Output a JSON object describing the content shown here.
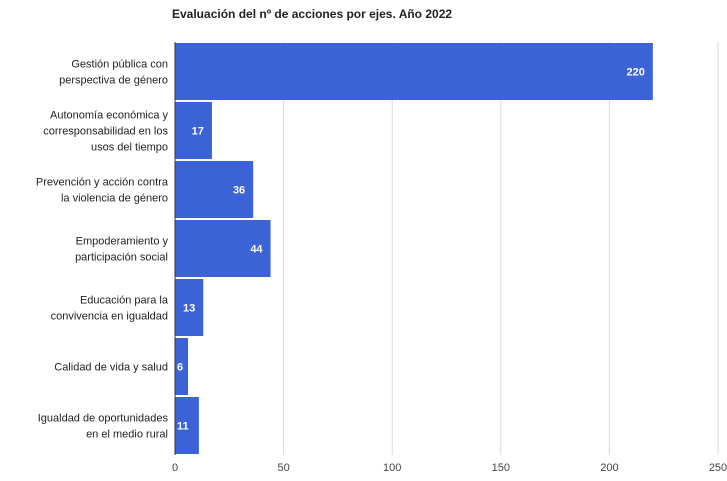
{
  "chart_data": {
    "type": "bar",
    "orientation": "horizontal",
    "title": "Evaluación del nº de acciones por ejes. Año 2022",
    "categories": [
      [
        "Gestión pública con",
        "perspectiva de género"
      ],
      [
        "Autonomía económica y",
        "corresponsabilidad en los",
        "usos del tiempo"
      ],
      [
        "Prevención y acción contra",
        "la violencia de género"
      ],
      [
        "Empoderamiento y",
        "participación social"
      ],
      [
        "Educación para la",
        "convivencia en igualdad"
      ],
      [
        "Calidad de vida y salud"
      ],
      [
        "Igualdad de oportunidades",
        "en el medio rural"
      ]
    ],
    "values": [
      220,
      17,
      36,
      44,
      13,
      6,
      11
    ],
    "data_labels": [
      "220",
      "17",
      "36",
      "44",
      "13",
      "6",
      "11"
    ],
    "xlim": [
      0,
      250
    ],
    "x_ticks": [
      "0",
      "50",
      "100",
      "150",
      "200",
      "250"
    ],
    "grid": true,
    "legend": "none",
    "colors": {
      "bar": "#3c63d6",
      "grid": "#d9d9d9",
      "axis": "#333333"
    }
  }
}
